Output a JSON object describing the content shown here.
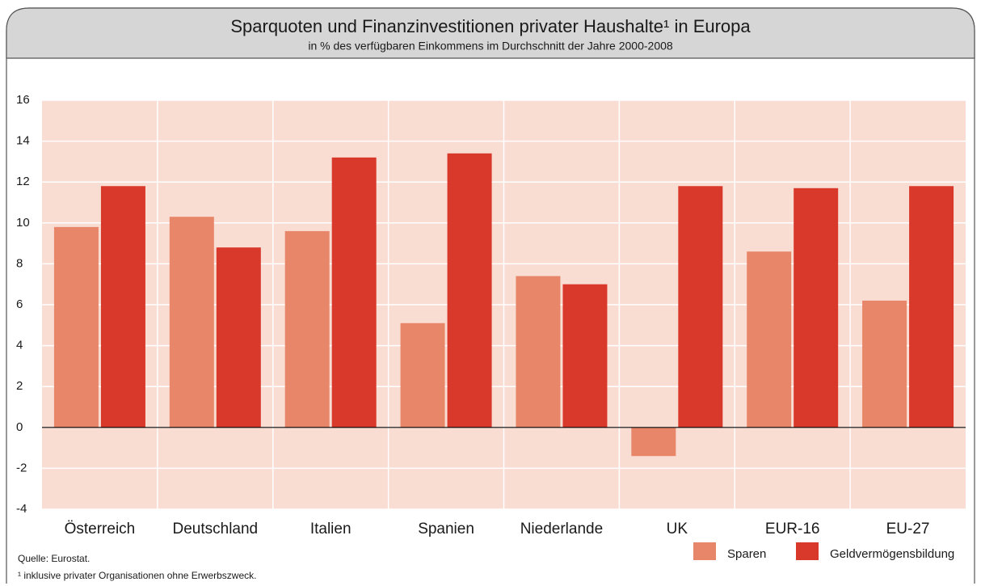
{
  "chart_data": {
    "type": "bar",
    "title": "Sparquoten und Finanzinvestitionen privater Haushalte¹ in Europa",
    "subtitle": "in % des verfügbaren Einkommens im Durchschnitt der Jahre 2000-2008",
    "categories": [
      "Österreich",
      "Deutschland",
      "Italien",
      "Spanien",
      "Niederlande",
      "UK",
      "EUR-16",
      "EU-27"
    ],
    "series": [
      {
        "name": "Sparen",
        "color": "#e8866a",
        "values": [
          9.8,
          10.3,
          9.6,
          5.1,
          7.4,
          -1.4,
          8.6,
          6.2
        ]
      },
      {
        "name": "Geldvermögensbildung",
        "color": "#d9392b",
        "values": [
          11.8,
          8.8,
          13.2,
          13.4,
          7.0,
          11.8,
          11.7,
          11.8
        ]
      }
    ],
    "ylim": [
      -4,
      16
    ],
    "yticks": [
      -4,
      -2,
      0,
      2,
      4,
      6,
      8,
      10,
      12,
      14,
      16
    ],
    "grid": true,
    "source": "Quelle: Eurostat.",
    "footnote": "¹ inklusive privater Organisationen ohne Erwerbszweck."
  }
}
